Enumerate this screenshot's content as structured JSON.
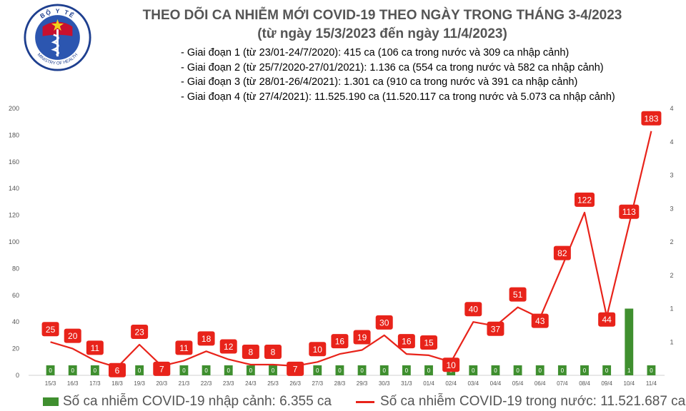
{
  "header": {
    "logo_text": "BỘ Y TẾ · MINISTRY OF HEALTH",
    "title": "THEO DÕI CA NHIỄM MỚI COVID-19 THEO NGÀY TRONG THÁNG 3-4/2023",
    "subtitle": "(từ ngày 15/3/2023 đến ngày 11/4/2023)"
  },
  "notes": [
    "Giai đoạn 1 (từ 23/01-24/7/2020): 415 ca (106 ca trong nước và 309 ca nhập cảnh)",
    "Giai đoạn 2 (từ 25/7/2020-27/01/2021): 1.136 ca (554 ca trong nước và 582 ca nhập cảnh)",
    "Giai đoạn 3 (từ 28/01-26/4/2021): 1.301 ca (910 ca trong nước và 391 ca nhập cảnh)",
    "Giai đoạn 4 (từ 27/4/2021): 11.525.190 ca (11.520.117 ca trong nước và 5.073 ca nhập cảnh)"
  ],
  "colors": {
    "bar": "#3f8f2f",
    "line": "#e8231a",
    "axis_text": "#555555"
  },
  "chart_data": {
    "type": "bar+line",
    "categories": [
      "15/3",
      "16/3",
      "17/3",
      "18/3",
      "19/3",
      "20/3",
      "21/3",
      "22/3",
      "23/3",
      "24/3",
      "25/3",
      "26/3",
      "27/3",
      "28/3",
      "29/3",
      "30/3",
      "31/3",
      "01/4",
      "02/4",
      "03/4",
      "04/4",
      "05/4",
      "06/4",
      "07/4",
      "08/4",
      "09/4",
      "10/4",
      "11/4"
    ],
    "left_axis": {
      "ylim": [
        0,
        200
      ],
      "ticks": [
        0,
        20,
        40,
        60,
        80,
        100,
        120,
        140,
        160,
        180,
        200
      ]
    },
    "right_axis": {
      "ylim": [
        0,
        4
      ],
      "ticks": [
        "1",
        "1",
        "2",
        "2",
        "3",
        "3",
        "4",
        "4"
      ]
    },
    "series": [
      {
        "name": "Số ca nhiễm COVID-19 nhập cảnh: 6.355 ca",
        "type": "bar",
        "axis": "right",
        "values": [
          0,
          0,
          0,
          0,
          0,
          0,
          0,
          0,
          0,
          0,
          0,
          0,
          0,
          0,
          0,
          0,
          0,
          0,
          0,
          0,
          0,
          0,
          0,
          0,
          0,
          0,
          1,
          0
        ],
        "labels": [
          "0",
          "0",
          "0",
          "0",
          "0",
          "0",
          "0",
          "0",
          "0",
          "0",
          "0",
          "0",
          "0",
          "0",
          "0",
          "0",
          "0",
          "0",
          "0",
          "0",
          "0",
          "0",
          "0",
          "0",
          "0",
          "0",
          "1",
          "0"
        ]
      },
      {
        "name": "Số ca nhiễm COVID-19 trong nước: 11.521.687 ca",
        "type": "line",
        "axis": "left",
        "values": [
          25,
          20,
          11,
          6,
          23,
          7,
          11,
          18,
          12,
          8,
          8,
          7,
          10,
          16,
          19,
          30,
          16,
          15,
          10,
          40,
          37,
          51,
          43,
          82,
          122,
          44,
          113,
          183
        ]
      }
    ]
  }
}
